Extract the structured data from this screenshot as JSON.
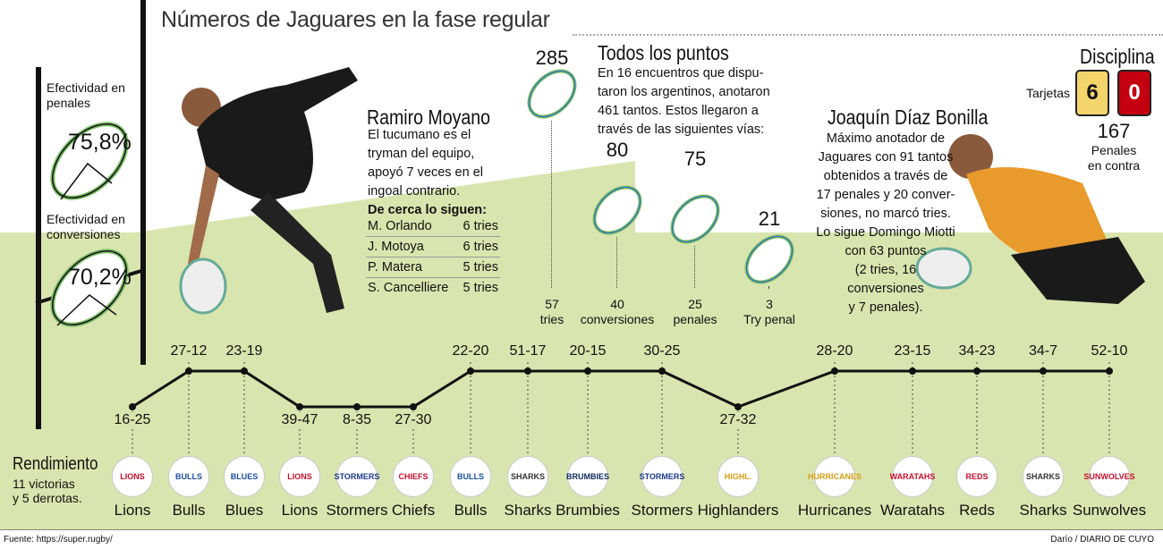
{
  "title": "Números de Jaguares en la fase regular",
  "efectividad": [
    {
      "label": "Efectividad en penales",
      "value": "75,8%"
    },
    {
      "label": "Efectividad en conversiones",
      "value": "70,2%"
    }
  ],
  "moyano": {
    "name": "Ramiro Moyano",
    "text": [
      "El tucumano es el",
      "tryman del equipo,",
      "apoyó 7 veces en el",
      "ingoal contrario."
    ],
    "follow_title": "De cerca lo siguen:",
    "rows": [
      {
        "name": "M. Orlando",
        "tries": "6 tries"
      },
      {
        "name": "J. Motoya",
        "tries": "6 tries"
      },
      {
        "name": "P. Matera",
        "tries": "5 tries"
      },
      {
        "name": "S. Cancelliere",
        "tries": "5 tries"
      }
    ]
  },
  "puntos": {
    "title": "Todos los puntos",
    "text": [
      "En 16 encuentros que dispu-",
      "taron los argentinos, anotaron",
      "461 tantos. Estos llegaron a",
      "través de las siguientes vías:"
    ],
    "items": [
      {
        "points": "285",
        "count": "57",
        "label": "tries"
      },
      {
        "points": "80",
        "count": "40",
        "label": "conversiones"
      },
      {
        "points": "75",
        "count": "25",
        "label": "penales"
      },
      {
        "points": "21",
        "count": "3",
        "label": "Try penal"
      }
    ]
  },
  "bonilla": {
    "name": "Joaquín Díaz Bonilla",
    "text": [
      "Máximo anotador de",
      "Jaguares con 91 tantos",
      "obtenidos a través de",
      "17 penales y 20 conver-",
      "siones, no marcó tries.",
      "Lo sigue Domingo Miotti",
      "con 63 puntos",
      "(2 tries, 16",
      "conversiones",
      "y 7 penales)."
    ]
  },
  "disciplina": {
    "title": "Disciplina",
    "tarjetas_label": "Tarjetas",
    "yellow": "6",
    "red": "0",
    "yellow_color": "#f3d56c",
    "red_color": "#c40010",
    "penales": "167",
    "penales_label": [
      "Penales",
      "en contra"
    ]
  },
  "rendimiento": {
    "title": "Rendimiento",
    "text": [
      "11 victorias",
      "y 5 derrotas."
    ]
  },
  "chart_data": {
    "type": "line",
    "categories": [
      "Lions",
      "Bulls",
      "Blues",
      "Lions",
      "Stormers",
      "Chiefs",
      "Bulls",
      "Sharks",
      "Brumbies",
      "Stormers",
      "Highlanders",
      "Hurricanes",
      "Waratahs",
      "Reds",
      "Sharks",
      "Sunwolves"
    ],
    "scores": [
      "16-25",
      "27-12",
      "23-19",
      "39-47",
      "8-35",
      "27-30",
      "22-20",
      "51-17",
      "20-15",
      "30-25",
      "27-32",
      "28-20",
      "23-15",
      "34-23",
      "34-7",
      "52-10"
    ],
    "results": [
      "L",
      "W",
      "W",
      "L",
      "L",
      "L",
      "W",
      "W",
      "W",
      "W",
      "L",
      "W",
      "W",
      "W",
      "W",
      "W"
    ]
  },
  "logos": [
    {
      "t": "LIONS",
      "c": "#c8102e"
    },
    {
      "t": "BULLS",
      "c": "#1b4fa0"
    },
    {
      "t": "BLUES",
      "c": "#1b4fa0"
    },
    {
      "t": "LIONS",
      "c": "#c8102e"
    },
    {
      "t": "STORMERS",
      "c": "#1b3a8a"
    },
    {
      "t": "CHIEFS",
      "c": "#c8102e"
    },
    {
      "t": "BULLS",
      "c": "#1b4fa0"
    },
    {
      "t": "SHARKS",
      "c": "#333"
    },
    {
      "t": "BRUMBIES",
      "c": "#0a2a5e"
    },
    {
      "t": "STORMERS",
      "c": "#1b3a8a"
    },
    {
      "t": "HIGHL.",
      "c": "#d4a017"
    },
    {
      "t": "HURRICANES",
      "c": "#d4a017"
    },
    {
      "t": "WARATAHS",
      "c": "#c8102e"
    },
    {
      "t": "REDS",
      "c": "#c8102e"
    },
    {
      "t": "SHARKS",
      "c": "#333"
    },
    {
      "t": "SUNWOLVES",
      "c": "#c8102e"
    }
  ],
  "footer": {
    "source": "Fuente: https://super.rugby/",
    "credit": "Darío / DIARIO DE CUYO"
  }
}
